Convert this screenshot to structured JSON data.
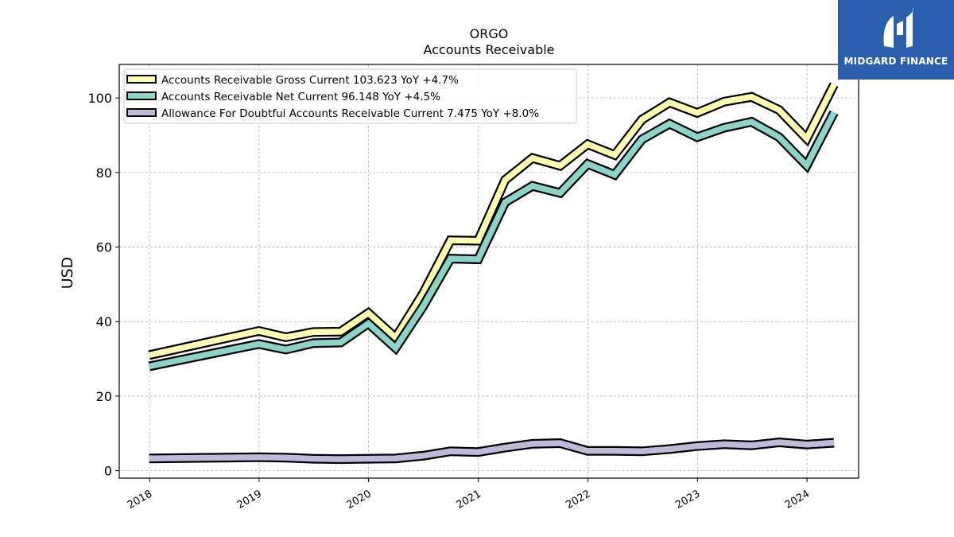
{
  "logo": {
    "text": "MIDGARD FINANCE",
    "color": "#2b5fad"
  },
  "chart_data": {
    "type": "line",
    "title": "ORGO",
    "subtitle": "Accounts Receivable",
    "xlabel": "",
    "ylabel": "USD",
    "x": [
      "2017-12-31",
      "2018-12-31",
      "2019-03-31",
      "2019-06-30",
      "2019-09-30",
      "2019-12-31",
      "2020-03-31",
      "2020-06-30",
      "2020-09-30",
      "2020-12-31",
      "2021-03-31",
      "2021-06-30",
      "2021-09-30",
      "2021-12-31",
      "2022-03-31",
      "2022-06-30",
      "2022-09-30",
      "2022-12-31",
      "2023-03-31",
      "2023-06-30",
      "2023-09-30",
      "2023-12-31",
      "2024-03-31"
    ],
    "xticks": [
      "2018",
      "2019",
      "2020",
      "2021",
      "2022",
      "2023",
      "2024"
    ],
    "xlim": [
      "2017-09-22",
      "2024-06-21"
    ],
    "ylim": [
      -2,
      109
    ],
    "yticks": [
      0,
      20,
      40,
      60,
      80,
      100
    ],
    "grid": true,
    "legend_position": "top-left",
    "series": [
      {
        "name": "Accounts Receivable Gross Current",
        "legend": "Accounts Receivable Gross Current  103.623 YoY +4.7%",
        "color": "#ffffb3",
        "values": [
          31,
          37.5,
          35.8,
          37.2,
          37.3,
          42.3,
          35.7,
          47.5,
          61.8,
          61.7,
          78.0,
          83.9,
          81.8,
          87.6,
          84.7,
          94.2,
          98.8,
          96.0,
          99.0,
          100.3,
          96.8,
          89.1,
          103.6
        ]
      },
      {
        "name": "Accounts Receivable Net Current",
        "legend": "Accounts Receivable Net Current  96.148 YoY +4.5%",
        "color": "#8dd3c7",
        "values": [
          28,
          34,
          32.5,
          34.2,
          34.4,
          39.5,
          32.9,
          44.0,
          56.9,
          56.7,
          72.0,
          76.4,
          74.5,
          82.3,
          79.4,
          88.9,
          93.1,
          89.5,
          92.0,
          93.6,
          89.5,
          81.9,
          96.1
        ]
      },
      {
        "name": "Allowance For Doubtful Accounts Receivable Current",
        "legend": "Allowance For Doubtful Accounts Receivable Current  7.475 YoY +8.0%",
        "color": "#bebada",
        "values": [
          3.3,
          3.6,
          3.5,
          3.2,
          3.1,
          3.2,
          3.3,
          4.0,
          5.2,
          5.0,
          6.2,
          7.2,
          7.4,
          5.3,
          5.3,
          5.2,
          5.8,
          6.6,
          7.1,
          6.8,
          7.6,
          7.0,
          7.5
        ]
      }
    ]
  }
}
